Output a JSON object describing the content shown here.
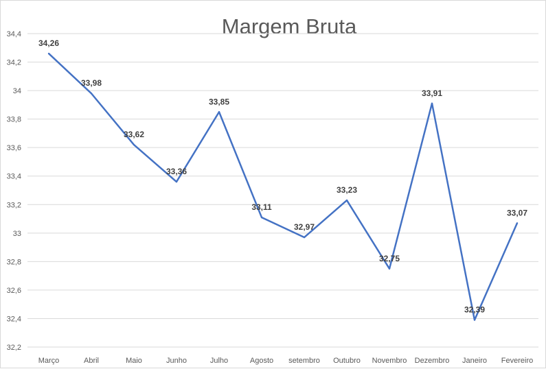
{
  "chart_data": {
    "type": "line",
    "title": "Margem Bruta",
    "categories": [
      "Março",
      "Abril",
      "Maio",
      "Junho",
      "Julho",
      "Agosto",
      "setembro",
      "Outubro",
      "Novembro",
      "Dezembro",
      "Janeiro",
      "Fevereiro"
    ],
    "series": [
      {
        "values": [
          34.26,
          33.98,
          33.62,
          33.36,
          33.85,
          33.11,
          32.97,
          33.23,
          32.75,
          33.91,
          32.39,
          33.07
        ],
        "data_labels": [
          "34,26",
          "33,98",
          "33,62",
          "33,36",
          "33,85",
          "33,11",
          "32,97",
          "33,23",
          "32,75",
          "33,91",
          "32,39",
          "33,07"
        ],
        "color": "#4472c4"
      }
    ],
    "ylim": [
      32.2,
      34.4
    ],
    "yticks": [
      32.2,
      32.4,
      32.6,
      32.8,
      33,
      33.2,
      33.4,
      33.6,
      33.8,
      34,
      34.2,
      34.4
    ],
    "ytick_labels": [
      "32,2",
      "32,4",
      "32,6",
      "32,8",
      "33",
      "33,2",
      "33,4",
      "33,6",
      "33,8",
      "34",
      "34,2",
      "34,4"
    ],
    "grid": true,
    "legend": "none",
    "xlabel": "",
    "ylabel": ""
  }
}
